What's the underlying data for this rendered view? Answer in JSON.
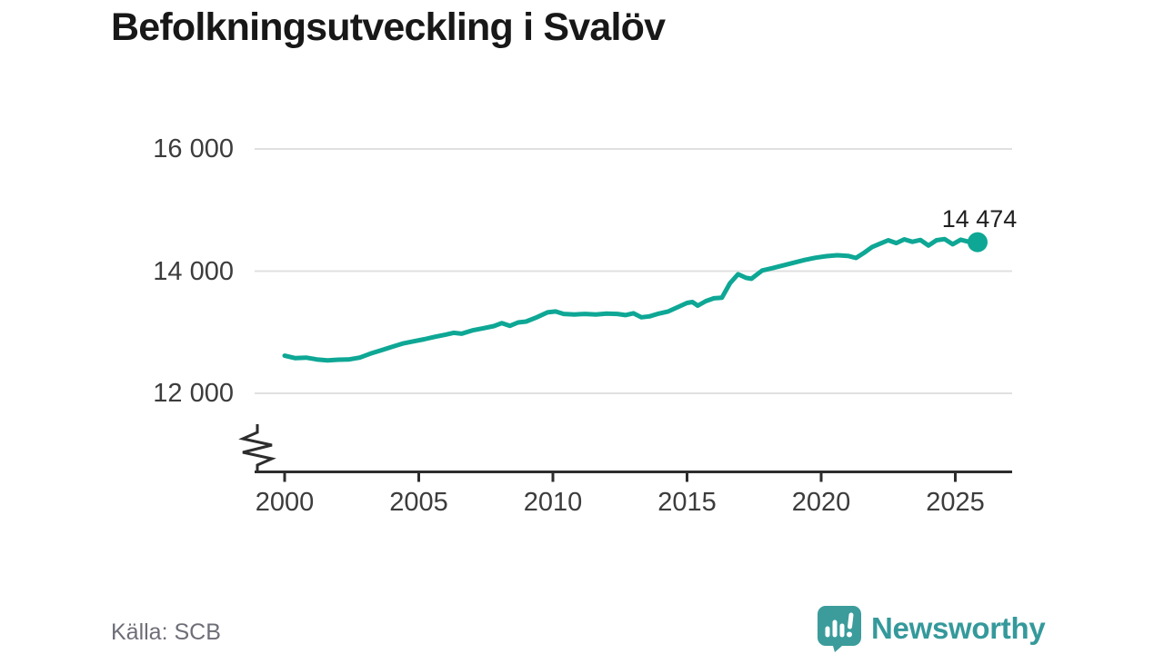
{
  "header": {
    "title": "Befolkningsutveckling i Svalöv"
  },
  "footer": {
    "source": "Källa: SCB",
    "brand_name": "Newsworthy"
  },
  "colors": {
    "line": "#0ea795",
    "grid": "#e0e0e0",
    "axis": "#2d2d2d",
    "brand": "#3b9c9b",
    "tick_text": "#3c3c3c"
  },
  "chart_data": {
    "type": "line",
    "title": "Befolkningsutveckling i Svalöv",
    "xlabel": "",
    "ylabel": "",
    "grid": "horizontal",
    "x_ticks": [
      2000,
      2005,
      2010,
      2015,
      2020,
      2025
    ],
    "y_ticks": [
      {
        "value": 16000,
        "label": "16 000"
      },
      {
        "value": 14000,
        "label": "14 000"
      },
      {
        "value": 12000,
        "label": "12 000"
      }
    ],
    "x_domain": [
      2000,
      2025.83
    ],
    "y_axis_break": true,
    "end_label": "14 474",
    "end_value": 14474,
    "series": [
      {
        "name": "Befolkning",
        "points": [
          [
            2000.0,
            12615
          ],
          [
            2000.4,
            12575
          ],
          [
            2000.8,
            12585
          ],
          [
            2001.2,
            12555
          ],
          [
            2001.6,
            12540
          ],
          [
            2002.0,
            12550
          ],
          [
            2002.4,
            12555
          ],
          [
            2002.8,
            12585
          ],
          [
            2003.2,
            12650
          ],
          [
            2003.6,
            12705
          ],
          [
            2004.0,
            12760
          ],
          [
            2004.4,
            12815
          ],
          [
            2004.8,
            12850
          ],
          [
            2005.2,
            12885
          ],
          [
            2005.6,
            12925
          ],
          [
            2006.0,
            12960
          ],
          [
            2006.3,
            12990
          ],
          [
            2006.6,
            12975
          ],
          [
            2007.0,
            13030
          ],
          [
            2007.4,
            13065
          ],
          [
            2007.8,
            13100
          ],
          [
            2008.1,
            13150
          ],
          [
            2008.4,
            13105
          ],
          [
            2008.7,
            13160
          ],
          [
            2009.0,
            13175
          ],
          [
            2009.4,
            13245
          ],
          [
            2009.8,
            13325
          ],
          [
            2010.1,
            13340
          ],
          [
            2010.4,
            13300
          ],
          [
            2010.8,
            13290
          ],
          [
            2011.2,
            13300
          ],
          [
            2011.6,
            13290
          ],
          [
            2012.0,
            13305
          ],
          [
            2012.4,
            13300
          ],
          [
            2012.7,
            13280
          ],
          [
            2013.0,
            13310
          ],
          [
            2013.3,
            13245
          ],
          [
            2013.6,
            13260
          ],
          [
            2013.9,
            13300
          ],
          [
            2014.3,
            13340
          ],
          [
            2014.7,
            13420
          ],
          [
            2015.0,
            13480
          ],
          [
            2015.2,
            13495
          ],
          [
            2015.4,
            13435
          ],
          [
            2015.7,
            13510
          ],
          [
            2016.0,
            13555
          ],
          [
            2016.3,
            13565
          ],
          [
            2016.6,
            13800
          ],
          [
            2016.9,
            13950
          ],
          [
            2017.2,
            13890
          ],
          [
            2017.4,
            13875
          ],
          [
            2017.8,
            14010
          ],
          [
            2018.2,
            14050
          ],
          [
            2018.6,
            14095
          ],
          [
            2019.0,
            14140
          ],
          [
            2019.4,
            14185
          ],
          [
            2019.8,
            14220
          ],
          [
            2020.2,
            14245
          ],
          [
            2020.6,
            14260
          ],
          [
            2021.0,
            14250
          ],
          [
            2021.3,
            14215
          ],
          [
            2021.6,
            14300
          ],
          [
            2021.9,
            14395
          ],
          [
            2022.2,
            14450
          ],
          [
            2022.5,
            14505
          ],
          [
            2022.8,
            14460
          ],
          [
            2023.1,
            14520
          ],
          [
            2023.4,
            14480
          ],
          [
            2023.7,
            14510
          ],
          [
            2024.0,
            14420
          ],
          [
            2024.3,
            14505
          ],
          [
            2024.6,
            14525
          ],
          [
            2024.9,
            14440
          ],
          [
            2025.2,
            14515
          ],
          [
            2025.5,
            14480
          ],
          [
            2025.65,
            14450
          ],
          [
            2025.83,
            14474
          ]
        ]
      }
    ]
  }
}
